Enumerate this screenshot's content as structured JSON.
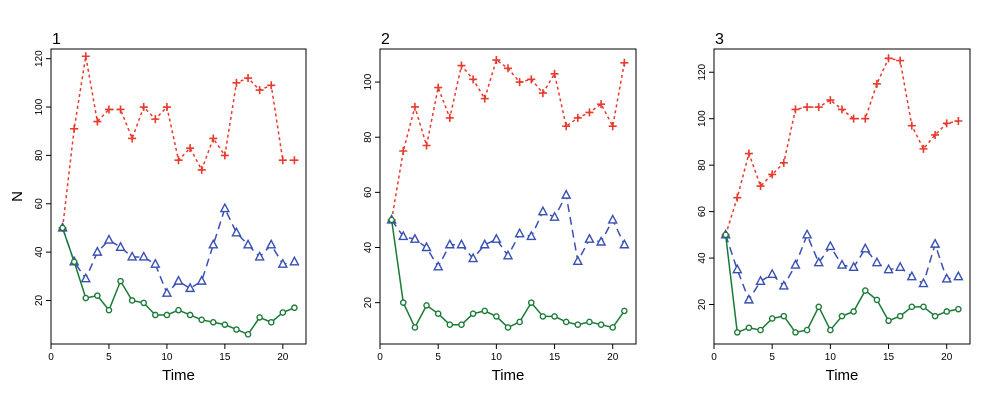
{
  "figure": {
    "ylabel": "N"
  },
  "colors": {
    "red": "#e8392c",
    "blue": "#3850b4",
    "green": "#1a7a36"
  },
  "chart_data": [
    {
      "type": "line",
      "title": "1",
      "xlabel": "Time",
      "ylabel": "N",
      "xlim": [
        0,
        22
      ],
      "ylim": [
        2,
        124
      ],
      "xticks": [
        0,
        5,
        10,
        15,
        20
      ],
      "yticks": [
        20,
        40,
        60,
        80,
        100,
        120
      ],
      "x": [
        1,
        2,
        3,
        4,
        5,
        6,
        7,
        8,
        9,
        10,
        11,
        12,
        13,
        14,
        15,
        16,
        17,
        18,
        19,
        20,
        21
      ],
      "series": [
        {
          "marker": "plus",
          "color": "red",
          "dash": "3,3",
          "values": [
            50,
            91,
            121,
            94,
            99,
            99,
            87,
            100,
            95,
            100,
            78,
            83,
            74,
            87,
            80,
            110,
            112,
            107,
            109,
            78,
            78
          ]
        },
        {
          "marker": "triangle",
          "color": "blue",
          "dash": "8,5",
          "values": [
            50,
            36,
            29,
            40,
            45,
            42,
            38,
            38,
            35,
            23,
            28,
            25,
            28,
            43,
            58,
            48,
            43,
            38,
            43,
            35,
            36
          ]
        },
        {
          "marker": "circle",
          "color": "green",
          "dash": "",
          "values": [
            50,
            36,
            21,
            22,
            16,
            28,
            20,
            19,
            14,
            14,
            16,
            14,
            12,
            11,
            10,
            8,
            6,
            13,
            11,
            15,
            17
          ]
        }
      ]
    },
    {
      "type": "line",
      "title": "2",
      "xlabel": "Time",
      "ylabel": "",
      "xlim": [
        0,
        22
      ],
      "ylim": [
        5,
        112
      ],
      "xticks": [
        0,
        5,
        10,
        15,
        20
      ],
      "yticks": [
        20,
        40,
        60,
        80,
        100
      ],
      "x": [
        1,
        2,
        3,
        4,
        5,
        6,
        7,
        8,
        9,
        10,
        11,
        12,
        13,
        14,
        15,
        16,
        17,
        18,
        19,
        20,
        21
      ],
      "series": [
        {
          "marker": "plus",
          "color": "red",
          "dash": "3,3",
          "values": [
            50,
            75,
            91,
            77,
            98,
            87,
            106,
            101,
            94,
            108,
            105,
            100,
            101,
            96,
            103,
            84,
            87,
            89,
            92,
            84,
            107
          ]
        },
        {
          "marker": "triangle",
          "color": "blue",
          "dash": "8,5",
          "values": [
            50,
            44,
            43,
            40,
            33,
            41,
            41,
            36,
            41,
            43,
            37,
            45,
            44,
            53,
            51,
            59,
            35,
            43,
            42,
            50,
            41
          ]
        },
        {
          "marker": "circle",
          "color": "green",
          "dash": "",
          "values": [
            50,
            20,
            11,
            19,
            16,
            12,
            12,
            16,
            17,
            15,
            11,
            13,
            20,
            15,
            15,
            13,
            12,
            13,
            12,
            11,
            17
          ]
        }
      ]
    },
    {
      "type": "line",
      "title": "3",
      "xlabel": "Time",
      "ylabel": "",
      "xlim": [
        0,
        22
      ],
      "ylim": [
        3,
        130
      ],
      "xticks": [
        0,
        5,
        10,
        15,
        20
      ],
      "yticks": [
        20,
        40,
        60,
        80,
        100,
        120
      ],
      "x": [
        1,
        2,
        3,
        4,
        5,
        6,
        7,
        8,
        9,
        10,
        11,
        12,
        13,
        14,
        15,
        16,
        17,
        18,
        19,
        20,
        21
      ],
      "series": [
        {
          "marker": "plus",
          "color": "red",
          "dash": "3,3",
          "values": [
            50,
            66,
            85,
            71,
            76,
            81,
            104,
            105,
            105,
            108,
            104,
            100,
            100,
            115,
            126,
            125,
            97,
            87,
            93,
            98,
            99
          ]
        },
        {
          "marker": "triangle",
          "color": "blue",
          "dash": "8,5",
          "values": [
            50,
            35,
            22,
            30,
            33,
            28,
            37,
            50,
            38,
            45,
            37,
            36,
            44,
            38,
            35,
            36,
            32,
            29,
            46,
            31,
            32
          ]
        },
        {
          "marker": "circle",
          "color": "green",
          "dash": "",
          "values": [
            50,
            8,
            10,
            9,
            14,
            15,
            8,
            9,
            19,
            9,
            15,
            17,
            26,
            22,
            13,
            15,
            19,
            19,
            15,
            17,
            18
          ]
        }
      ]
    }
  ]
}
